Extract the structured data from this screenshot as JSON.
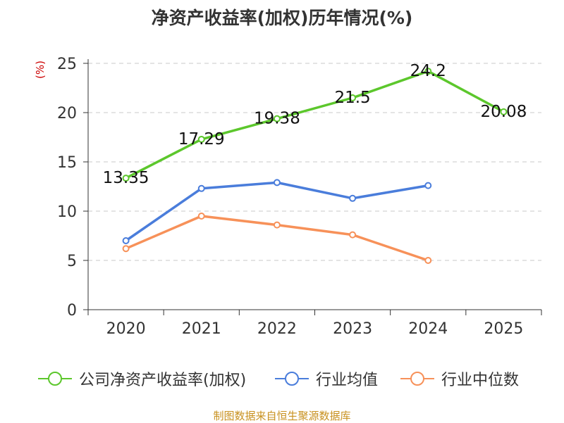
{
  "chart_data": {
    "type": "line",
    "title": "净资产收益率(加权)历年情况(%)",
    "ylabel": "(%)",
    "xlabel": "",
    "categories": [
      "2020",
      "2021",
      "2022",
      "2023",
      "2024",
      "2025"
    ],
    "ylim": [
      0,
      25
    ],
    "yticks": [
      0,
      5,
      10,
      15,
      20,
      25
    ],
    "grid": true,
    "legend_position": "bottom",
    "series": [
      {
        "name": "公司净资产收益率(加权)",
        "color": "#5cc72c",
        "values": [
          13.35,
          17.29,
          19.38,
          21.5,
          24.2,
          20.08
        ],
        "labels": [
          "13.35",
          "17.29",
          "19.38",
          "21.5",
          "24.2",
          "20.08"
        ]
      },
      {
        "name": "行业均值",
        "color": "#4a7ddb",
        "values": [
          7.0,
          12.3,
          12.9,
          11.3,
          12.6,
          null
        ]
      },
      {
        "name": "行业中位数",
        "color": "#f79159",
        "values": [
          6.2,
          9.5,
          8.6,
          7.6,
          5.0,
          null
        ]
      }
    ]
  },
  "source_note": "制图数据来自恒生聚源数据库"
}
